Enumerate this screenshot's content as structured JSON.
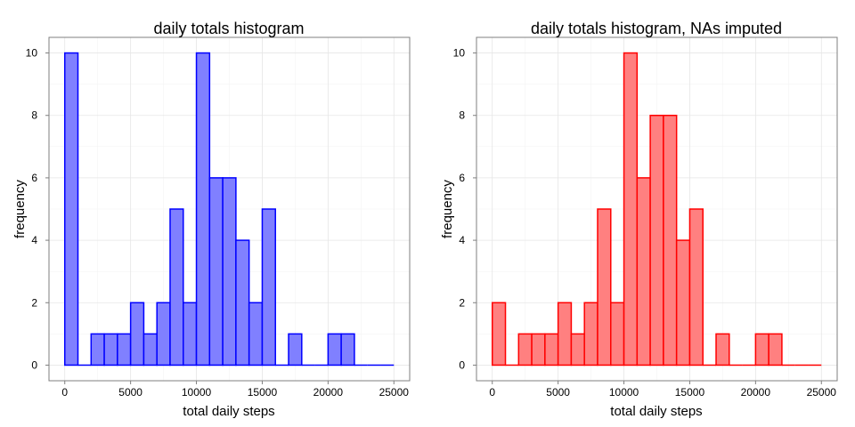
{
  "chart_data": [
    {
      "type": "bar",
      "title": "daily totals histogram",
      "xlabel": "total daily steps",
      "ylabel": "frequency",
      "bin_width": 1000,
      "bin_starts": [
        0,
        1000,
        2000,
        3000,
        4000,
        5000,
        6000,
        7000,
        8000,
        9000,
        10000,
        11000,
        12000,
        13000,
        14000,
        15000,
        16000,
        17000,
        18000,
        19000,
        20000,
        21000,
        22000,
        23000,
        24000
      ],
      "values": [
        10,
        0,
        1,
        1,
        1,
        2,
        1,
        2,
        5,
        2,
        10,
        6,
        6,
        4,
        2,
        5,
        0,
        1,
        0,
        0,
        1,
        1,
        0,
        0,
        0
      ],
      "xlim": [
        -1200,
        26200
      ],
      "ylim": [
        -0.5,
        10.5
      ],
      "xticks": [
        0,
        5000,
        10000,
        15000,
        20000,
        25000
      ],
      "yticks": [
        0,
        2,
        4,
        6,
        8,
        10
      ],
      "fill_color": "#8080ff",
      "line_color": "#0000ff",
      "grid": true
    },
    {
      "type": "bar",
      "title": "daily totals histogram, NAs imputed",
      "xlabel": "total daily steps",
      "ylabel": "frequency",
      "bin_width": 1000,
      "bin_starts": [
        0,
        1000,
        2000,
        3000,
        4000,
        5000,
        6000,
        7000,
        8000,
        9000,
        10000,
        11000,
        12000,
        13000,
        14000,
        15000,
        16000,
        17000,
        18000,
        19000,
        20000,
        21000,
        22000,
        23000,
        24000
      ],
      "values": [
        2,
        0,
        1,
        1,
        1,
        2,
        1,
        2,
        5,
        2,
        10,
        6,
        8,
        8,
        4,
        5,
        0,
        1,
        0,
        0,
        1,
        1,
        0,
        0,
        0
      ],
      "xlim": [
        -1200,
        26200
      ],
      "ylim": [
        -0.5,
        10.5
      ],
      "xticks": [
        0,
        5000,
        10000,
        15000,
        20000,
        25000
      ],
      "yticks": [
        0,
        2,
        4,
        6,
        8,
        10
      ],
      "fill_color": "#ff8080",
      "line_color": "#ff0000",
      "grid": true
    }
  ]
}
